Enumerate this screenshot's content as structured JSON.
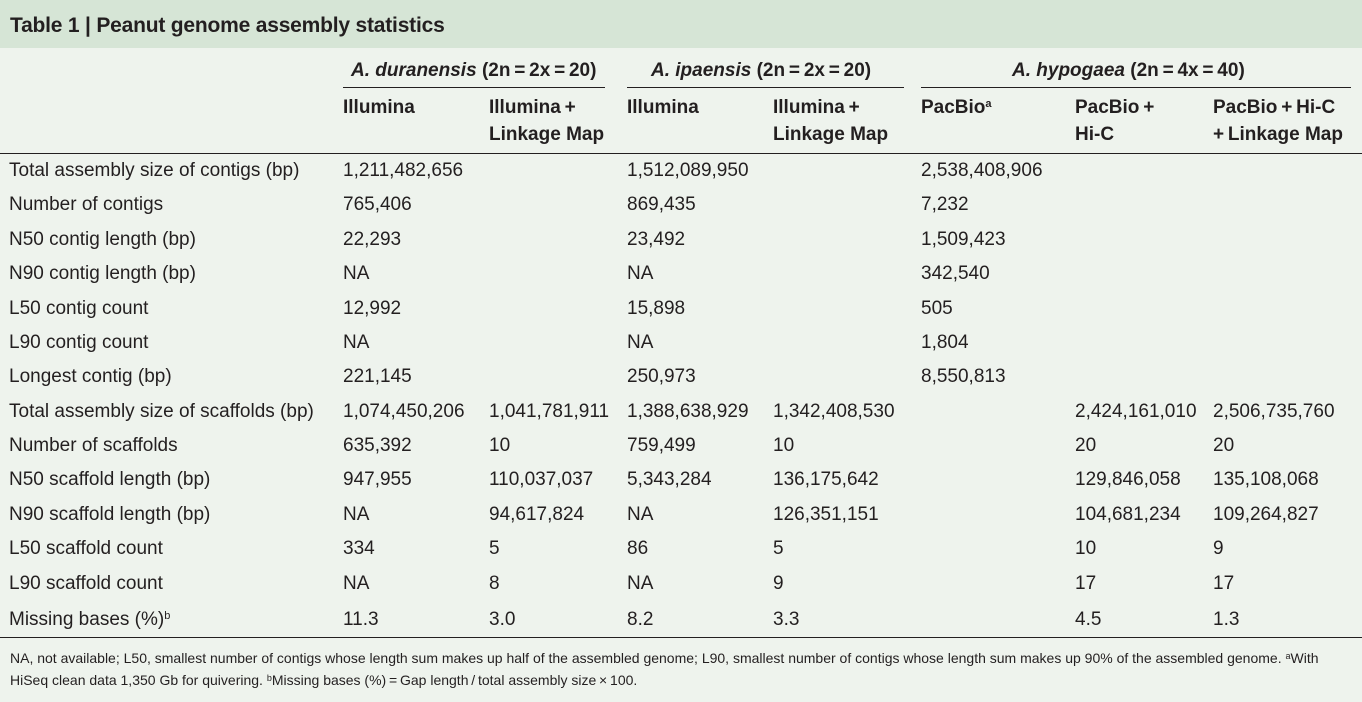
{
  "table": {
    "title": "Table 1 | Peanut genome assembly statistics",
    "groups": [
      {
        "species": "A. duranensis",
        "ploidy": "(2n = 2x = 20)"
      },
      {
        "species": "A. ipaensis",
        "ploidy": "(2n = 2x = 20)"
      },
      {
        "species": "A. hypogaea",
        "ploidy": "(2n = 4x = 40)"
      }
    ],
    "subheaders": [
      {
        "text": "Illumina",
        "sup": ""
      },
      {
        "text": "Illumina +\nLinkage Map",
        "sup": ""
      },
      {
        "text": "Illumina",
        "sup": ""
      },
      {
        "text": "Illumina +\nLinkage Map",
        "sup": ""
      },
      {
        "text": "PacBio",
        "sup": "a"
      },
      {
        "text": "PacBio +\nHi-C",
        "sup": ""
      },
      {
        "text": "PacBio + Hi-C\n+ Linkage Map",
        "sup": ""
      }
    ],
    "rows": [
      {
        "label": "Total assembly size of contigs (bp)",
        "sup": "",
        "values": [
          "1,211,482,656",
          "",
          "1,512,089,950",
          "",
          "2,538,408,906",
          "",
          ""
        ]
      },
      {
        "label": "Number of contigs",
        "sup": "",
        "values": [
          "765,406",
          "",
          "869,435",
          "",
          "7,232",
          "",
          ""
        ]
      },
      {
        "label": "N50 contig length (bp)",
        "sup": "",
        "values": [
          "22,293",
          "",
          "23,492",
          "",
          "1,509,423",
          "",
          ""
        ]
      },
      {
        "label": "N90 contig length (bp)",
        "sup": "",
        "values": [
          "NA",
          "",
          "NA",
          "",
          "342,540",
          "",
          ""
        ]
      },
      {
        "label": "L50 contig count",
        "sup": "",
        "values": [
          "12,992",
          "",
          "15,898",
          "",
          "505",
          "",
          ""
        ]
      },
      {
        "label": "L90 contig count",
        "sup": "",
        "values": [
          "NA",
          "",
          "NA",
          "",
          "1,804",
          "",
          ""
        ]
      },
      {
        "label": "Longest contig (bp)",
        "sup": "",
        "values": [
          "221,145",
          "",
          "250,973",
          "",
          "8,550,813",
          "",
          ""
        ]
      },
      {
        "label": "Total assembly size of scaffolds (bp)",
        "sup": "",
        "values": [
          "1,074,450,206",
          "1,041,781,911",
          "1,388,638,929",
          "1,342,408,530",
          "",
          "2,424,161,010",
          "2,506,735,760"
        ]
      },
      {
        "label": "Number of scaffolds",
        "sup": "",
        "values": [
          "635,392",
          "10",
          "759,499",
          "10",
          "",
          "20",
          "20"
        ]
      },
      {
        "label": "N50 scaffold length (bp)",
        "sup": "",
        "values": [
          "947,955",
          "110,037,037",
          "5,343,284",
          "136,175,642",
          "",
          "129,846,058",
          "135,108,068"
        ]
      },
      {
        "label": "N90 scaffold length (bp)",
        "sup": "",
        "values": [
          "NA",
          "94,617,824",
          "NA",
          "126,351,151",
          "",
          "104,681,234",
          "109,264,827"
        ]
      },
      {
        "label": "L50 scaffold count",
        "sup": "",
        "values": [
          "334",
          "5",
          "86",
          "5",
          "",
          "10",
          "9"
        ]
      },
      {
        "label": "L90 scaffold count",
        "sup": "",
        "values": [
          "NA",
          "8",
          "NA",
          "9",
          "",
          "17",
          "17"
        ]
      },
      {
        "label": "Missing bases (%)",
        "sup": "b",
        "values": [
          "11.3",
          "3.0",
          "8.2",
          "3.3",
          "",
          "4.5",
          "1.3"
        ]
      }
    ],
    "footnote": {
      "text1": "NA, not available; L50, smallest number of contigs whose length sum makes up half of the assembled genome; L90, smallest number of contigs whose length sum makes up 90% of the assembled genome. ",
      "sup_a": "a",
      "text2": "With HiSeq clean data 1,350 Gb for quivering. ",
      "sup_b": "b",
      "text3": "Missing bases (%) = Gap length / total assembly size × 100."
    }
  }
}
